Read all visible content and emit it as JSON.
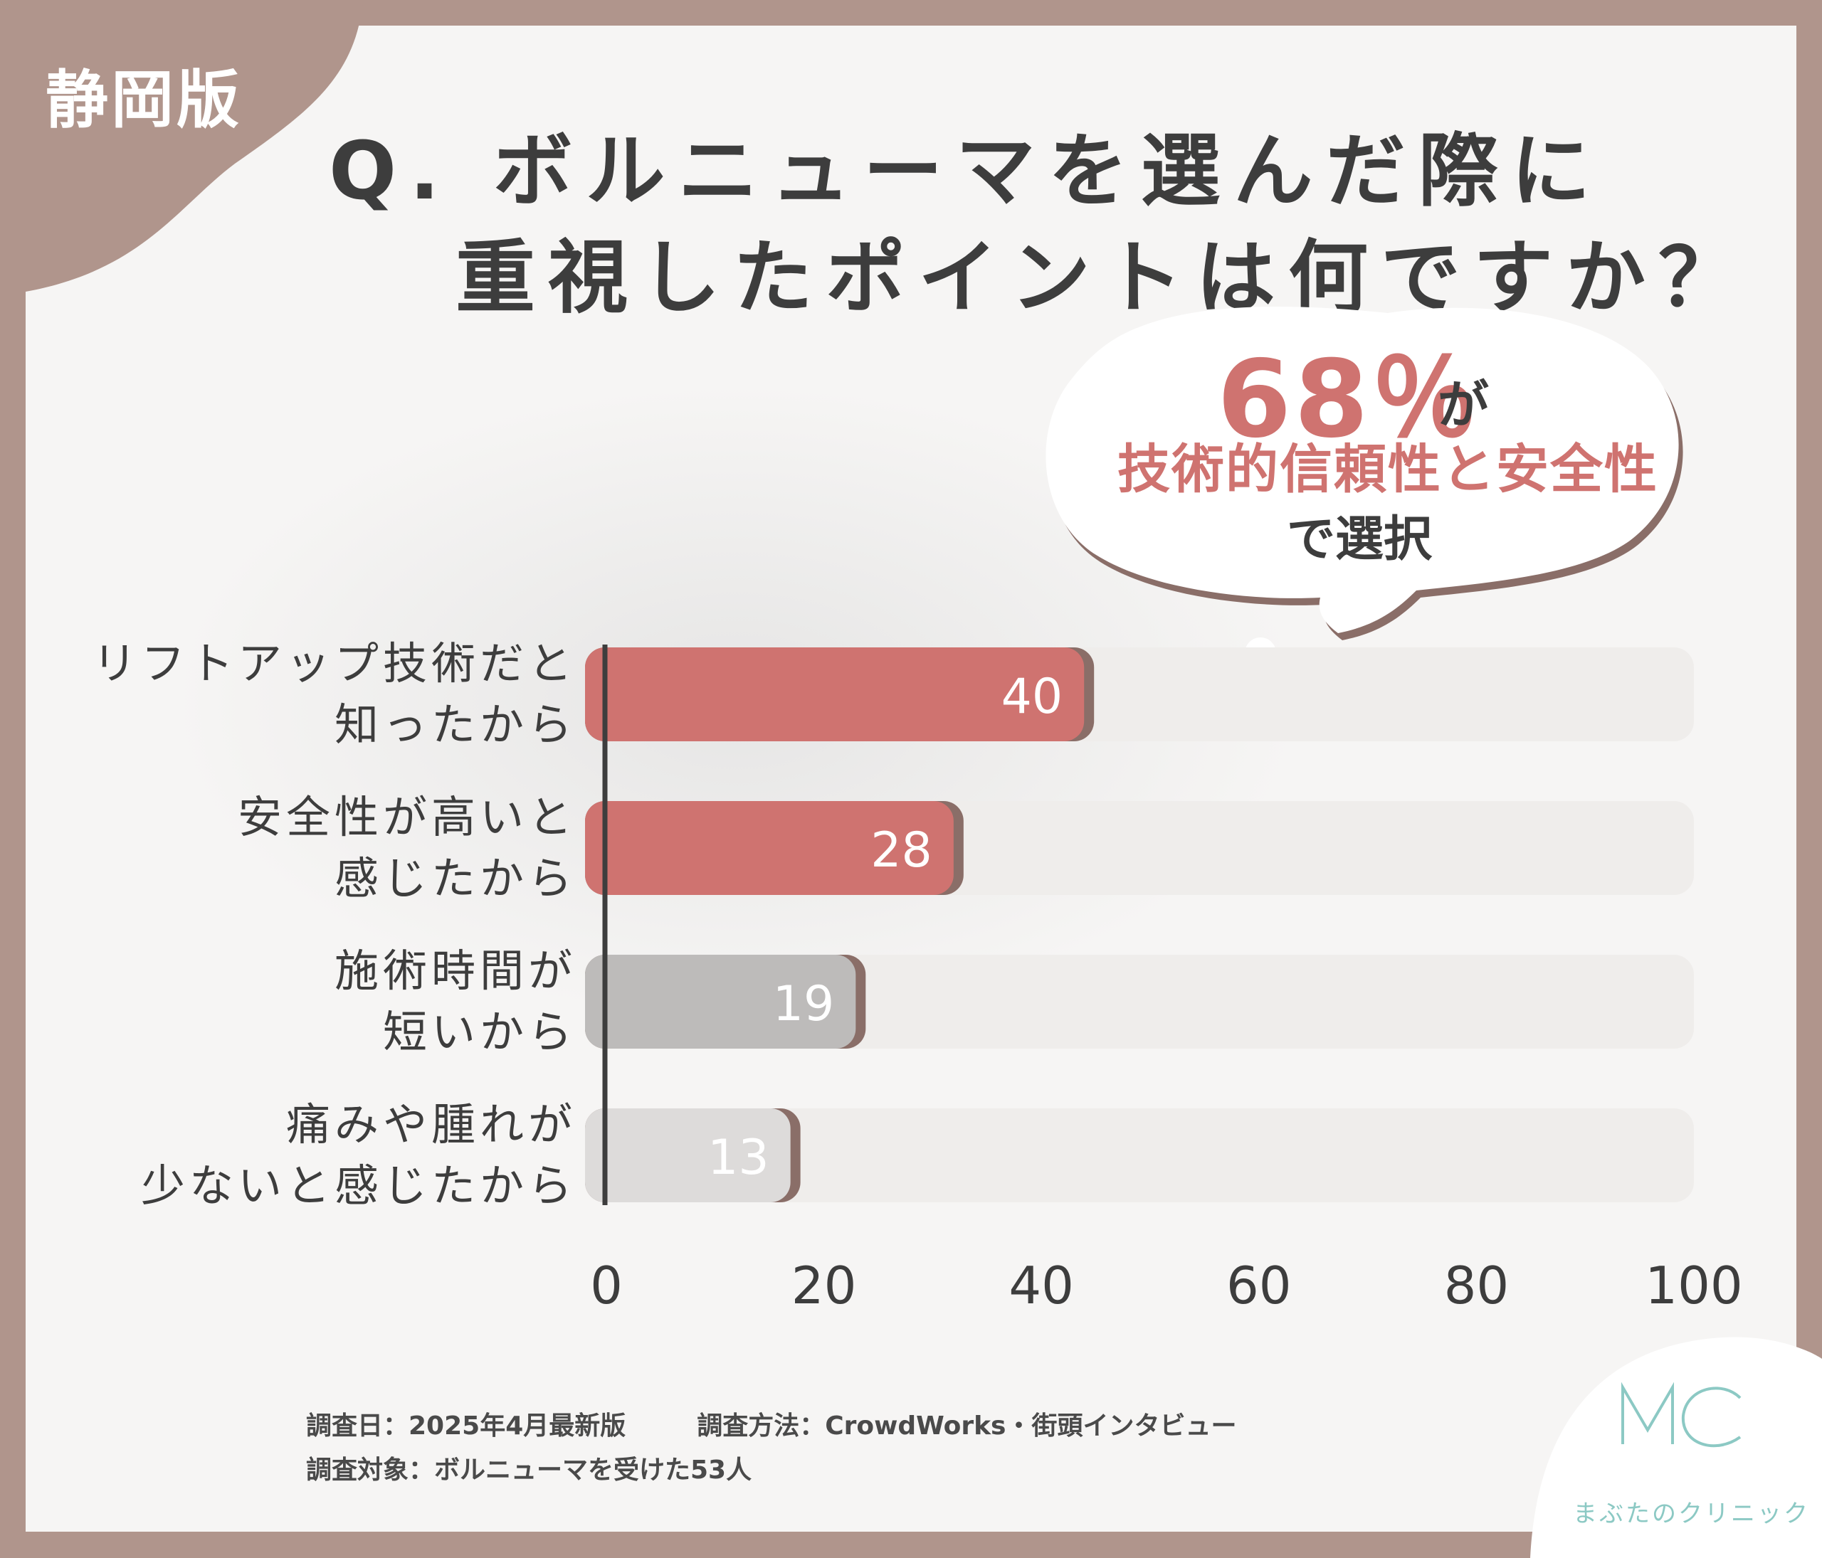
{
  "region": "静岡版",
  "question": {
    "line1": "Q. ボルニューマを選んだ際に",
    "line2": "重視したポイントは何ですか？"
  },
  "callout": {
    "percent": "68％",
    "suffix": "が",
    "main": "技術的信頼性と安全性",
    "sub": "で選択"
  },
  "colors": {
    "background": "#b0958c",
    "card": "#f6f5f4",
    "highlight_bar": "#cf7370",
    "gray_bar": "#bdbbba",
    "light_bar": "#dddbda",
    "track": "#efedeb",
    "title_text": "#3d3d3d",
    "logo": "#8cc9c4"
  },
  "chart_data": {
    "type": "bar",
    "orientation": "horizontal",
    "categories": [
      [
        "リフトアップ技術だと",
        "知ったから"
      ],
      [
        "安全性が高いと",
        "感じたから"
      ],
      [
        "施術時間が",
        "短いから"
      ],
      [
        "痛みや腫れが",
        "少ないと感じたから"
      ]
    ],
    "values": [
      40,
      28,
      19,
      13
    ],
    "value_labels": [
      "40",
      "28",
      "19",
      "13"
    ],
    "bar_colors": [
      "#cf7370",
      "#cf7370",
      "#bdbbba",
      "#dddbda"
    ],
    "xlim": [
      0,
      100
    ],
    "xticks": [
      0,
      20,
      40,
      60,
      80,
      100
    ],
    "xtick_labels": [
      "0",
      "20",
      "40",
      "60",
      "80",
      "100"
    ]
  },
  "survey": {
    "date": "調査日：2025年4月最新版",
    "method": "調査方法：CrowdWorks・街頭インタビュー",
    "target": "調査対象：ボルニューマを受けた53人"
  },
  "logo": {
    "mark": "MC",
    "name": "まぶたのクリニック"
  }
}
